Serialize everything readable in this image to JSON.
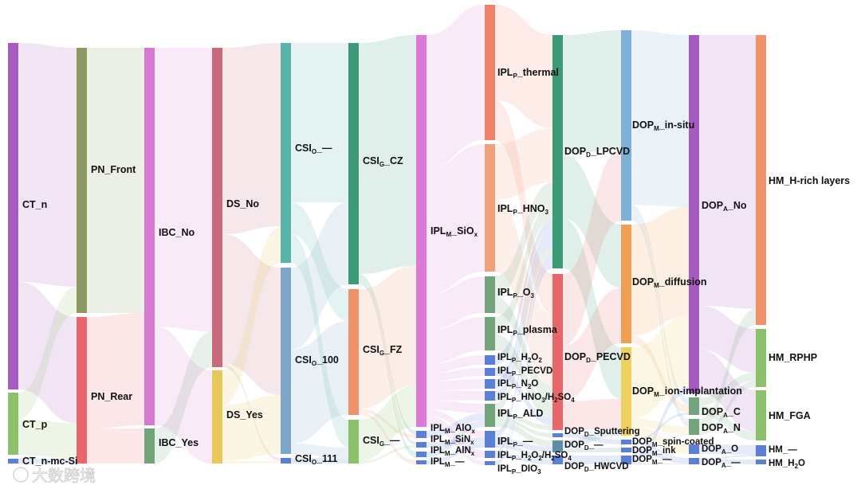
{
  "columns": [
    {
      "id": "CT",
      "nodes": [
        {
          "key": "CT_n",
          "prefix": "CT_n",
          "color": "#a55bbf"
        },
        {
          "key": "CT_p",
          "prefix": "CT_p",
          "color": "#8cc06a"
        },
        {
          "key": "CT_mc",
          "prefix": "CT_n-mc-Si",
          "color": "#5b7fd6"
        }
      ]
    },
    {
      "id": "PN",
      "nodes": [
        {
          "key": "PN_Front",
          "prefix": "PN_Front",
          "color": "#8a9a62"
        },
        {
          "key": "PN_Rear",
          "prefix": "PN_Rear",
          "color": "#e8676a"
        }
      ]
    },
    {
      "id": "IBC",
      "nodes": [
        {
          "key": "IBC_No",
          "prefix": "IBC_No",
          "color": "#d57ad0"
        },
        {
          "key": "IBC_Yes",
          "prefix": "IBC_Yes",
          "color": "#72a47c"
        }
      ]
    },
    {
      "id": "DS",
      "nodes": [
        {
          "key": "DS_No",
          "prefix": "DS_No",
          "color": "#c96a7a"
        },
        {
          "key": "DS_Yes",
          "prefix": "DS_Yes",
          "color": "#e8c85a"
        }
      ]
    },
    {
      "id": "CSIO",
      "nodes": [
        {
          "key": "CSIO_dash",
          "prefix": "CSI",
          "sub": "O",
          "suffix": "_—",
          "color": "#58b4a8"
        },
        {
          "key": "CSIO_100",
          "prefix": "CSI",
          "sub": "O",
          "suffix": "_100",
          "color": "#7ea6c8"
        },
        {
          "key": "CSIO_111",
          "prefix": "CSI",
          "sub": "O",
          "suffix": "_111",
          "color": "#5b7fd6"
        }
      ]
    },
    {
      "id": "CSIG",
      "nodes": [
        {
          "key": "CSIG_CZ",
          "prefix": "CSI",
          "sub": "G",
          "suffix": "_CZ",
          "color": "#3c9a76"
        },
        {
          "key": "CSIG_FZ",
          "prefix": "CSI",
          "sub": "G",
          "suffix": "_FZ",
          "color": "#f0926a"
        },
        {
          "key": "CSIG_dash",
          "prefix": "CSI",
          "sub": "G",
          "suffix": "_—",
          "color": "#8cc06a"
        }
      ]
    },
    {
      "id": "IPLM",
      "nodes": [
        {
          "key": "IPLM_SiOx",
          "prefix": "IPL",
          "sub": "M",
          "suffix": "_SiO",
          "sub2": "x",
          "color": "#da7ad6"
        },
        {
          "key": "IPLM_AlOx",
          "prefix": "IPL",
          "sub": "M",
          "suffix": "_AlO",
          "sub2": "x",
          "color": "#5b7fd6"
        },
        {
          "key": "IPLM_SiNx",
          "prefix": "IPL",
          "sub": "M",
          "suffix": "_SiN",
          "sub2": "x",
          "color": "#5b7fd6"
        },
        {
          "key": "IPLM_AlNx",
          "prefix": "IPL",
          "sub": "M",
          "suffix": "_AlN",
          "sub2": "x",
          "color": "#5b7fd6"
        },
        {
          "key": "IPLM_dash",
          "prefix": "IPL",
          "sub": "M",
          "suffix": "_—",
          "color": "#5b7fd6"
        }
      ]
    },
    {
      "id": "IPLP",
      "nodes": [
        {
          "key": "IPLP_thermal",
          "prefix": "IPL",
          "sub": "P",
          "suffix": "_thermal",
          "color": "#f0826a"
        },
        {
          "key": "IPLP_HNO3",
          "prefix": "IPL",
          "sub": "P",
          "suffix": "_HNO",
          "sub2": "3",
          "color": "#f0a07a"
        },
        {
          "key": "IPLP_O3",
          "prefix": "IPL",
          "sub": "P",
          "suffix": "_O",
          "sub2": "3",
          "color": "#72a47c"
        },
        {
          "key": "IPLP_plasma",
          "prefix": "IPL",
          "sub": "P",
          "suffix": "_plasma",
          "color": "#72a47c"
        },
        {
          "key": "IPLP_H2O2",
          "prefix": "IPL",
          "sub": "P",
          "suffix": "_H",
          "sub2": "2",
          "suffix2": "O",
          "sub3": "2",
          "color": "#5b7fd6"
        },
        {
          "key": "IPLP_PECVD",
          "prefix": "IPL",
          "sub": "P",
          "suffix": "_PECVD",
          "color": "#5b7fd6"
        },
        {
          "key": "IPLP_N2O",
          "prefix": "IPL",
          "sub": "P",
          "suffix": "_N",
          "sub2": "2",
          "suffix2": "O",
          "color": "#5b7fd6"
        },
        {
          "key": "IPLP_HNO3H2SO4",
          "prefix": "IPL",
          "sub": "P",
          "suffix": "_HNO",
          "sub2": "3",
          "suffix2": "/H",
          "sub3": "2",
          "suffix3": "SO",
          "sub4": "4",
          "color": "#5b7fd6"
        },
        {
          "key": "IPLP_ALD",
          "prefix": "IPL",
          "sub": "P",
          "suffix": "_ALD",
          "color": "#72a47c"
        },
        {
          "key": "IPLP_dash",
          "prefix": "IPL",
          "sub": "P",
          "suffix": "_—",
          "color": "#5b7fd6"
        },
        {
          "key": "IPLP_H2O2H2SO4",
          "prefix": "IPL",
          "sub": "P",
          "suffix": "_H",
          "sub2": "2",
          "suffix2": "O",
          "sub3": "2",
          "suffix3": "/H",
          "sub4": "2",
          "suffix4": "SO",
          "sub5": "4",
          "color": "#5b7fd6"
        },
        {
          "key": "IPLP_DIO3",
          "prefix": "IPL",
          "sub": "P",
          "suffix": "_DIO",
          "sub2": "3",
          "color": "#5b7fd6"
        }
      ]
    },
    {
      "id": "DOPD",
      "nodes": [
        {
          "key": "DOPD_LPCVD",
          "prefix": "DOP",
          "sub": "D",
          "suffix": "_LPCVD",
          "color": "#3c9a76"
        },
        {
          "key": "DOPD_PECVD",
          "prefix": "DOP",
          "sub": "D",
          "suffix": "_PECVD",
          "color": "#e8676a"
        },
        {
          "key": "DOPD_Sputtering",
          "prefix": "DOP",
          "sub": "D",
          "suffix": "_Sputtering",
          "color": "#5b7fd6"
        },
        {
          "key": "DOPD_dash",
          "prefix": "DOP",
          "sub": "D",
          "suffix": "_—",
          "color": "#5b8fa8"
        },
        {
          "key": "DOPD_HWCVD",
          "prefix": "DOP",
          "sub": "D",
          "suffix": "_HWCVD",
          "color": "#5b7fd6"
        }
      ]
    },
    {
      "id": "DOPM",
      "nodes": [
        {
          "key": "DOPM_insitu",
          "prefix": "DOP",
          "sub": "M",
          "suffix": "_in-situ",
          "color": "#7eb0d6"
        },
        {
          "key": "DOPM_diffusion",
          "prefix": "DOP",
          "sub": "M",
          "suffix": "_diffusion",
          "color": "#f0a052"
        },
        {
          "key": "DOPM_ionimpl",
          "prefix": "DOP",
          "sub": "M",
          "suffix": "_ion-implantation",
          "color": "#eed060"
        },
        {
          "key": "DOPM_spincoated",
          "prefix": "DOP",
          "sub": "M",
          "suffix": "_spin-coated",
          "color": "#5b7fd6"
        },
        {
          "key": "DOPM_ink",
          "prefix": "DOP",
          "sub": "M",
          "suffix": "_ink",
          "color": "#5b7fd6"
        },
        {
          "key": "DOPM_dash",
          "prefix": "DOP",
          "sub": "M",
          "suffix": "_—",
          "color": "#5b7fd6"
        }
      ]
    },
    {
      "id": "DOPA",
      "nodes": [
        {
          "key": "DOPA_No",
          "prefix": "DOP",
          "sub": "A",
          "suffix": "_No",
          "color": "#a55bbf"
        },
        {
          "key": "DOPA_C",
          "prefix": "DOP",
          "sub": "A",
          "suffix": "_C",
          "color": "#72a47c"
        },
        {
          "key": "DOPA_N",
          "prefix": "DOP",
          "sub": "A",
          "suffix": "_N",
          "color": "#72a47c"
        },
        {
          "key": "DOPA_O",
          "prefix": "DOP",
          "sub": "A",
          "suffix": "_O",
          "color": "#5b7fd6"
        },
        {
          "key": "DOPA_dash",
          "prefix": "DOP",
          "sub": "A",
          "suffix": "_—",
          "color": "#5b7fd6"
        }
      ]
    },
    {
      "id": "HM",
      "nodes": [
        {
          "key": "HM_Hrich",
          "prefix": "HM_H-rich layers",
          "color": "#f0926a"
        },
        {
          "key": "HM_RPHP",
          "prefix": "HM_RPHP",
          "color": "#8cc06a"
        },
        {
          "key": "HM_FGA",
          "prefix": "HM_FGA",
          "color": "#8cc06a"
        },
        {
          "key": "HM_dash",
          "prefix": "HM_—",
          "color": "#5b7fd6"
        },
        {
          "key": "HM_H2O",
          "prefix": "HM_H",
          "sub2": "2",
          "suffix2": "O",
          "color": "#5b7fd6"
        }
      ]
    }
  ],
  "watermark": "大数跨境"
}
